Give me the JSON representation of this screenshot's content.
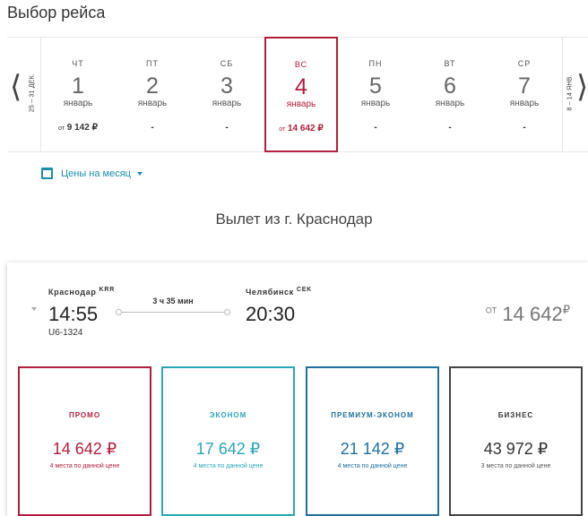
{
  "page_title": "Выбор рейса",
  "date_strip": {
    "prev_range": "25 – 31 ДЕК.",
    "next_range": "8 – 14 ЯНВ.",
    "days": [
      {
        "weekday": "ЧТ",
        "num": "1",
        "month": "январь",
        "price_prefix": "от",
        "price": "9 142 ₽",
        "selected": false
      },
      {
        "weekday": "ПТ",
        "num": "2",
        "month": "январь",
        "price_prefix": "",
        "price": "-",
        "selected": false
      },
      {
        "weekday": "СБ",
        "num": "3",
        "month": "январь",
        "price_prefix": "",
        "price": "-",
        "selected": false
      },
      {
        "weekday": "ВС",
        "num": "4",
        "month": "январь",
        "price_prefix": "от",
        "price": "14 642 ₽",
        "selected": true
      },
      {
        "weekday": "ПН",
        "num": "5",
        "month": "январь",
        "price_prefix": "",
        "price": "-",
        "selected": false
      },
      {
        "weekday": "ВТ",
        "num": "6",
        "month": "январь",
        "price_prefix": "",
        "price": "-",
        "selected": false
      },
      {
        "weekday": "СР",
        "num": "7",
        "month": "январь",
        "price_prefix": "",
        "price": "-",
        "selected": false
      }
    ]
  },
  "month_prices_label": "Цены на месяц",
  "departure_title": "Вылет из г. Краснодар",
  "flight": {
    "from_city": "Краснодар",
    "from_code": "KRR",
    "to_city": "Челябинск",
    "to_code": "CEK",
    "dep_time": "14:55",
    "arr_time": "20:30",
    "duration": "3 ч 35 мин",
    "flight_no": "U6-1324",
    "min_price_prefix": "ОТ",
    "min_price": "14 642",
    "min_price_currency": "₽"
  },
  "fares": [
    {
      "name": "ПРОМО",
      "price": "14 642 ₽",
      "seats": "4 места по данной цене"
    },
    {
      "name": "ЭКОНОМ",
      "price": "17 642 ₽",
      "seats": "4 места по данной цене"
    },
    {
      "name": "ПРЕМИУМ-ЭКОНОМ",
      "price": "21 142 ₽",
      "seats": "4 места по данной цене"
    },
    {
      "name": "БИЗНЕС",
      "price": "43 972 ₽",
      "seats": "3 места по данной цене"
    }
  ],
  "colors": {
    "promo": "#b01e3c",
    "econom": "#2aa6b9",
    "premium": "#1e6f9e",
    "business": "#444444"
  }
}
